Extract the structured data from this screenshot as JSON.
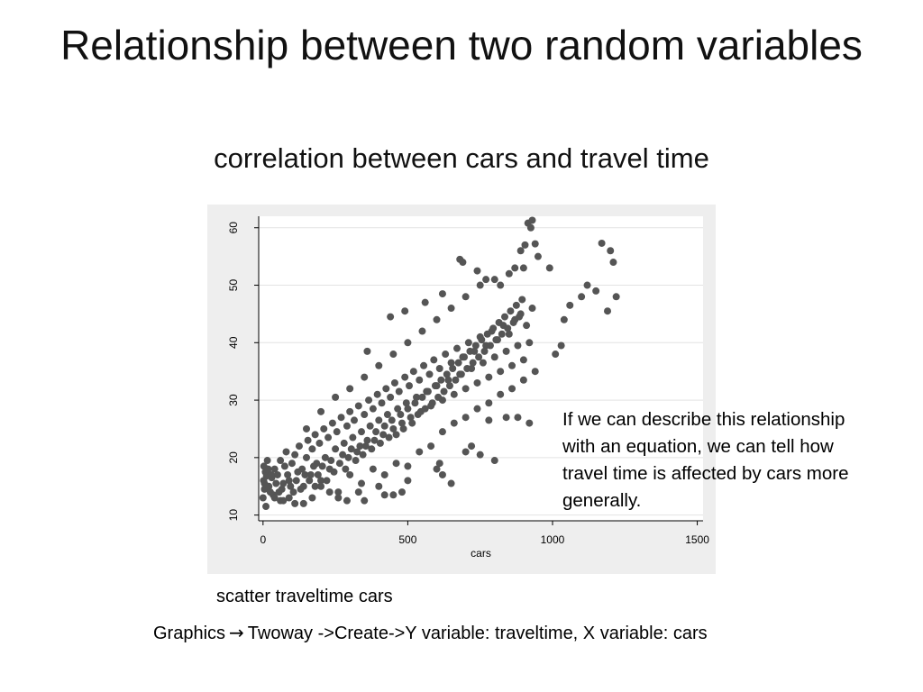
{
  "slide": {
    "title": "Relationship between two random variables",
    "subtitle": "correlation between cars and travel time",
    "annotation_lines": [
      "If we can describe this relationship",
      "with an equation, we can  tell how",
      "travel time is affected by cars more",
      "generally."
    ],
    "command": "scatter traveltime cars",
    "menu_path": {
      "first": "Graphics",
      "arrow_icon": "right-arrow-icon",
      "rest": "Twoway ->Create->Y variable: traveltime, X variable: cars"
    }
  },
  "chart_data": {
    "type": "scatter",
    "xlabel": "cars",
    "ylabel": "",
    "xlim": [
      -15,
      1520
    ],
    "ylim": [
      9,
      62
    ],
    "xticks": [
      0,
      500,
      1000,
      1500
    ],
    "yticks": [
      10,
      20,
      30,
      40,
      50,
      60
    ],
    "grid": "horizontal",
    "marker_color": "#555555",
    "background_color": "#eeeeee",
    "plot_color": "#ffffff",
    "series": [
      {
        "points": [
          [
            10,
            11.5
          ],
          [
            0,
            13
          ],
          [
            5,
            14.5
          ],
          [
            2,
            16
          ],
          [
            8,
            17.5
          ],
          [
            3,
            18.5
          ],
          [
            15,
            19.5
          ],
          [
            20,
            15
          ],
          [
            30,
            16.5
          ],
          [
            35,
            13.5
          ],
          [
            40,
            18
          ],
          [
            50,
            17
          ],
          [
            55,
            14
          ],
          [
            60,
            19.5
          ],
          [
            70,
            15.5
          ],
          [
            75,
            18.5
          ],
          [
            80,
            21
          ],
          [
            90,
            16
          ],
          [
            100,
            19
          ],
          [
            105,
            14
          ],
          [
            110,
            20.5
          ],
          [
            120,
            17.5
          ],
          [
            125,
            22
          ],
          [
            135,
            18
          ],
          [
            140,
            15
          ],
          [
            150,
            20
          ],
          [
            155,
            23
          ],
          [
            165,
            17
          ],
          [
            170,
            21.5
          ],
          [
            180,
            24
          ],
          [
            185,
            19
          ],
          [
            195,
            22.5
          ],
          [
            200,
            16
          ],
          [
            210,
            25
          ],
          [
            215,
            20
          ],
          [
            225,
            23.5
          ],
          [
            230,
            18
          ],
          [
            240,
            26
          ],
          [
            250,
            21.5
          ],
          [
            255,
            24.5
          ],
          [
            265,
            19
          ],
          [
            270,
            27
          ],
          [
            280,
            22.5
          ],
          [
            290,
            25.5
          ],
          [
            295,
            20
          ],
          [
            300,
            28
          ],
          [
            310,
            23.5
          ],
          [
            315,
            26.5
          ],
          [
            325,
            21
          ],
          [
            330,
            29
          ],
          [
            340,
            24.5
          ],
          [
            350,
            27.5
          ],
          [
            355,
            22
          ],
          [
            365,
            30
          ],
          [
            370,
            25.5
          ],
          [
            380,
            28.5
          ],
          [
            385,
            23
          ],
          [
            395,
            31
          ],
          [
            400,
            26.5
          ],
          [
            410,
            29.5
          ],
          [
            415,
            24
          ],
          [
            425,
            32
          ],
          [
            430,
            27.5
          ],
          [
            440,
            30.5
          ],
          [
            450,
            25
          ],
          [
            455,
            33
          ],
          [
            465,
            28.5
          ],
          [
            470,
            31.5
          ],
          [
            480,
            26
          ],
          [
            490,
            34
          ],
          [
            495,
            29.5
          ],
          [
            505,
            32.5
          ],
          [
            510,
            27
          ],
          [
            520,
            35
          ],
          [
            530,
            30.5
          ],
          [
            540,
            33.5
          ],
          [
            545,
            28
          ],
          [
            555,
            36
          ],
          [
            565,
            31.5
          ],
          [
            575,
            34.5
          ],
          [
            580,
            29
          ],
          [
            590,
            37
          ],
          [
            600,
            32.5
          ],
          [
            610,
            35.5
          ],
          [
            620,
            30
          ],
          [
            630,
            38
          ],
          [
            640,
            33.5
          ],
          [
            650,
            36.5
          ],
          [
            660,
            31
          ],
          [
            670,
            39
          ],
          [
            680,
            34.5
          ],
          [
            690,
            37.5
          ],
          [
            700,
            32
          ],
          [
            710,
            40
          ],
          [
            720,
            35.5
          ],
          [
            730,
            38.5
          ],
          [
            740,
            33
          ],
          [
            750,
            41
          ],
          [
            760,
            36.5
          ],
          [
            770,
            39.5
          ],
          [
            780,
            34
          ],
          [
            790,
            42
          ],
          [
            800,
            37.5
          ],
          [
            810,
            40.5
          ],
          [
            820,
            35
          ],
          [
            830,
            43
          ],
          [
            840,
            38.5
          ],
          [
            850,
            41.5
          ],
          [
            860,
            36
          ],
          [
            870,
            44
          ],
          [
            880,
            39.5
          ],
          [
            890,
            45
          ],
          [
            900,
            37
          ],
          [
            910,
            43
          ],
          [
            920,
            40
          ],
          [
            930,
            46
          ],
          [
            60,
            12.5
          ],
          [
            90,
            13
          ],
          [
            130,
            14.5
          ],
          [
            180,
            15
          ],
          [
            220,
            16
          ],
          [
            260,
            14
          ],
          [
            300,
            17
          ],
          [
            340,
            15.5
          ],
          [
            380,
            18
          ],
          [
            420,
            17
          ],
          [
            460,
            19
          ],
          [
            500,
            18.5
          ],
          [
            540,
            21
          ],
          [
            580,
            22
          ],
          [
            620,
            24.5
          ],
          [
            660,
            26
          ],
          [
            700,
            27
          ],
          [
            740,
            28.5
          ],
          [
            780,
            29.5
          ],
          [
            820,
            31
          ],
          [
            860,
            32
          ],
          [
            900,
            33.5
          ],
          [
            940,
            35
          ],
          [
            150,
            25
          ],
          [
            200,
            28
          ],
          [
            250,
            30.5
          ],
          [
            300,
            32
          ],
          [
            350,
            34
          ],
          [
            400,
            36
          ],
          [
            450,
            38
          ],
          [
            500,
            40
          ],
          [
            550,
            42
          ],
          [
            600,
            44
          ],
          [
            650,
            46
          ],
          [
            700,
            48
          ],
          [
            750,
            50
          ],
          [
            800,
            51
          ],
          [
            850,
            52
          ],
          [
            900,
            53
          ],
          [
            950,
            55
          ],
          [
            360,
            38.5
          ],
          [
            440,
            44.5
          ],
          [
            490,
            45.5
          ],
          [
            560,
            47
          ],
          [
            620,
            48.5
          ],
          [
            680,
            54.5
          ],
          [
            690,
            54
          ],
          [
            740,
            52.5
          ],
          [
            770,
            51
          ],
          [
            820,
            50
          ],
          [
            870,
            53
          ],
          [
            890,
            56
          ],
          [
            905,
            57
          ],
          [
            915,
            60.8
          ],
          [
            930,
            61.3
          ],
          [
            925,
            60
          ],
          [
            940,
            57.2
          ],
          [
            990,
            53
          ],
          [
            1040,
            44
          ],
          [
            1060,
            46.5
          ],
          [
            1100,
            48
          ],
          [
            1120,
            50
          ],
          [
            1150,
            49
          ],
          [
            1170,
            57.3
          ],
          [
            1200,
            56
          ],
          [
            1210,
            54
          ],
          [
            1220,
            48
          ],
          [
            1190,
            45.5
          ],
          [
            1010,
            38
          ],
          [
            1030,
            39.5
          ],
          [
            780,
            26.5
          ],
          [
            840,
            27
          ],
          [
            880,
            27
          ],
          [
            920,
            26
          ],
          [
            700,
            21
          ],
          [
            750,
            20.5
          ],
          [
            720,
            22
          ],
          [
            800,
            19.5
          ],
          [
            620,
            17
          ],
          [
            650,
            15.5
          ],
          [
            610,
            19
          ],
          [
            600,
            18
          ],
          [
            500,
            16
          ],
          [
            480,
            14
          ],
          [
            450,
            13.5
          ],
          [
            420,
            13.5
          ],
          [
            400,
            15
          ],
          [
            350,
            12.5
          ],
          [
            330,
            14
          ],
          [
            290,
            12.5
          ],
          [
            260,
            13
          ],
          [
            230,
            14
          ],
          [
            200,
            15
          ],
          [
            170,
            13
          ],
          [
            140,
            12
          ],
          [
            110,
            12
          ],
          [
            70,
            12.5
          ],
          [
            40,
            13
          ],
          [
            25,
            14
          ],
          [
            5,
            15.5
          ],
          [
            12,
            16.8
          ],
          [
            18,
            18
          ],
          [
            28,
            17
          ],
          [
            45,
            15.5
          ],
          [
            65,
            14.5
          ],
          [
            85,
            17
          ],
          [
            95,
            15
          ],
          [
            115,
            16
          ],
          [
            145,
            17
          ],
          [
            160,
            16
          ],
          [
            175,
            18.5
          ],
          [
            190,
            17
          ],
          [
            205,
            18.5
          ],
          [
            235,
            19.5
          ],
          [
            245,
            17.5
          ],
          [
            275,
            20.5
          ],
          [
            285,
            18
          ],
          [
            305,
            21.5
          ],
          [
            320,
            19.5
          ],
          [
            335,
            22
          ],
          [
            345,
            20.5
          ],
          [
            360,
            23
          ],
          [
            375,
            21.5
          ],
          [
            390,
            24.5
          ],
          [
            405,
            22.5
          ],
          [
            420,
            25.5
          ],
          [
            435,
            23.5
          ],
          [
            445,
            26.5
          ],
          [
            460,
            24
          ],
          [
            475,
            27.5
          ],
          [
            485,
            25
          ],
          [
            500,
            28.5
          ],
          [
            515,
            26
          ],
          [
            525,
            29.5
          ],
          [
            535,
            27.5
          ],
          [
            550,
            30.5
          ],
          [
            560,
            28.5
          ],
          [
            570,
            31.5
          ],
          [
            585,
            29.5
          ],
          [
            595,
            32.5
          ],
          [
            605,
            30.5
          ],
          [
            615,
            33.5
          ],
          [
            625,
            31.5
          ],
          [
            635,
            34.5
          ],
          [
            645,
            32.5
          ],
          [
            655,
            35.5
          ],
          [
            665,
            33.5
          ],
          [
            675,
            36.5
          ],
          [
            685,
            34.5
          ],
          [
            695,
            37.5
          ],
          [
            705,
            35.5
          ],
          [
            715,
            38.5
          ],
          [
            725,
            36.5
          ],
          [
            735,
            39.5
          ],
          [
            745,
            37.5
          ],
          [
            755,
            40.5
          ],
          [
            765,
            38.5
          ],
          [
            775,
            41.5
          ],
          [
            785,
            39.5
          ],
          [
            795,
            42.5
          ],
          [
            805,
            40.5
          ],
          [
            815,
            43.5
          ],
          [
            825,
            41.5
          ],
          [
            835,
            44.5
          ],
          [
            845,
            42.5
          ],
          [
            855,
            45.5
          ],
          [
            865,
            43.5
          ],
          [
            875,
            46.5
          ],
          [
            885,
            44.5
          ],
          [
            895,
            47.5
          ]
        ]
      }
    ]
  }
}
